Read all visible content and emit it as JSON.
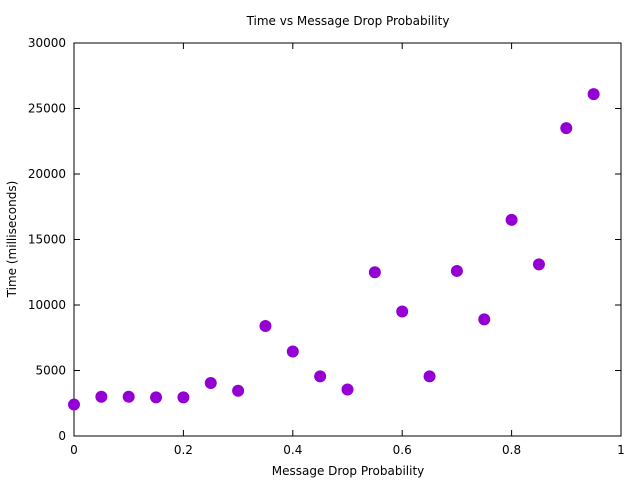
{
  "chart_data": {
    "type": "scatter",
    "title": "Time vs Message Drop Probability",
    "xlabel": "Message Drop Probability",
    "ylabel": "Time (milliseconds)",
    "xlim": [
      0,
      1
    ],
    "ylim": [
      0,
      30000
    ],
    "x_ticks": [
      0,
      0.2,
      0.4,
      0.6,
      0.8,
      1
    ],
    "x_tick_labels": [
      "0",
      "0.2",
      "0.4",
      "0.6",
      "0.8",
      "1"
    ],
    "y_ticks": [
      0,
      5000,
      10000,
      15000,
      20000,
      25000,
      30000
    ],
    "y_tick_labels": [
      "0",
      "5000",
      "10000",
      "15000",
      "20000",
      "25000",
      "30000"
    ],
    "grid": false,
    "marker_color": "#9400d3",
    "series": [
      {
        "x": [
          0,
          0.05,
          0.1,
          0.15,
          0.2,
          0.25,
          0.3,
          0.35,
          0.4,
          0.45,
          0.5,
          0.55,
          0.6,
          0.65,
          0.7,
          0.75,
          0.8,
          0.85,
          0.9,
          0.95
        ],
        "y": [
          2400,
          3000,
          3000,
          2950,
          2950,
          4050,
          3450,
          8400,
          6450,
          4550,
          3550,
          12500,
          9500,
          4550,
          12600,
          8900,
          16500,
          13100,
          23500,
          26100
        ]
      }
    ]
  }
}
